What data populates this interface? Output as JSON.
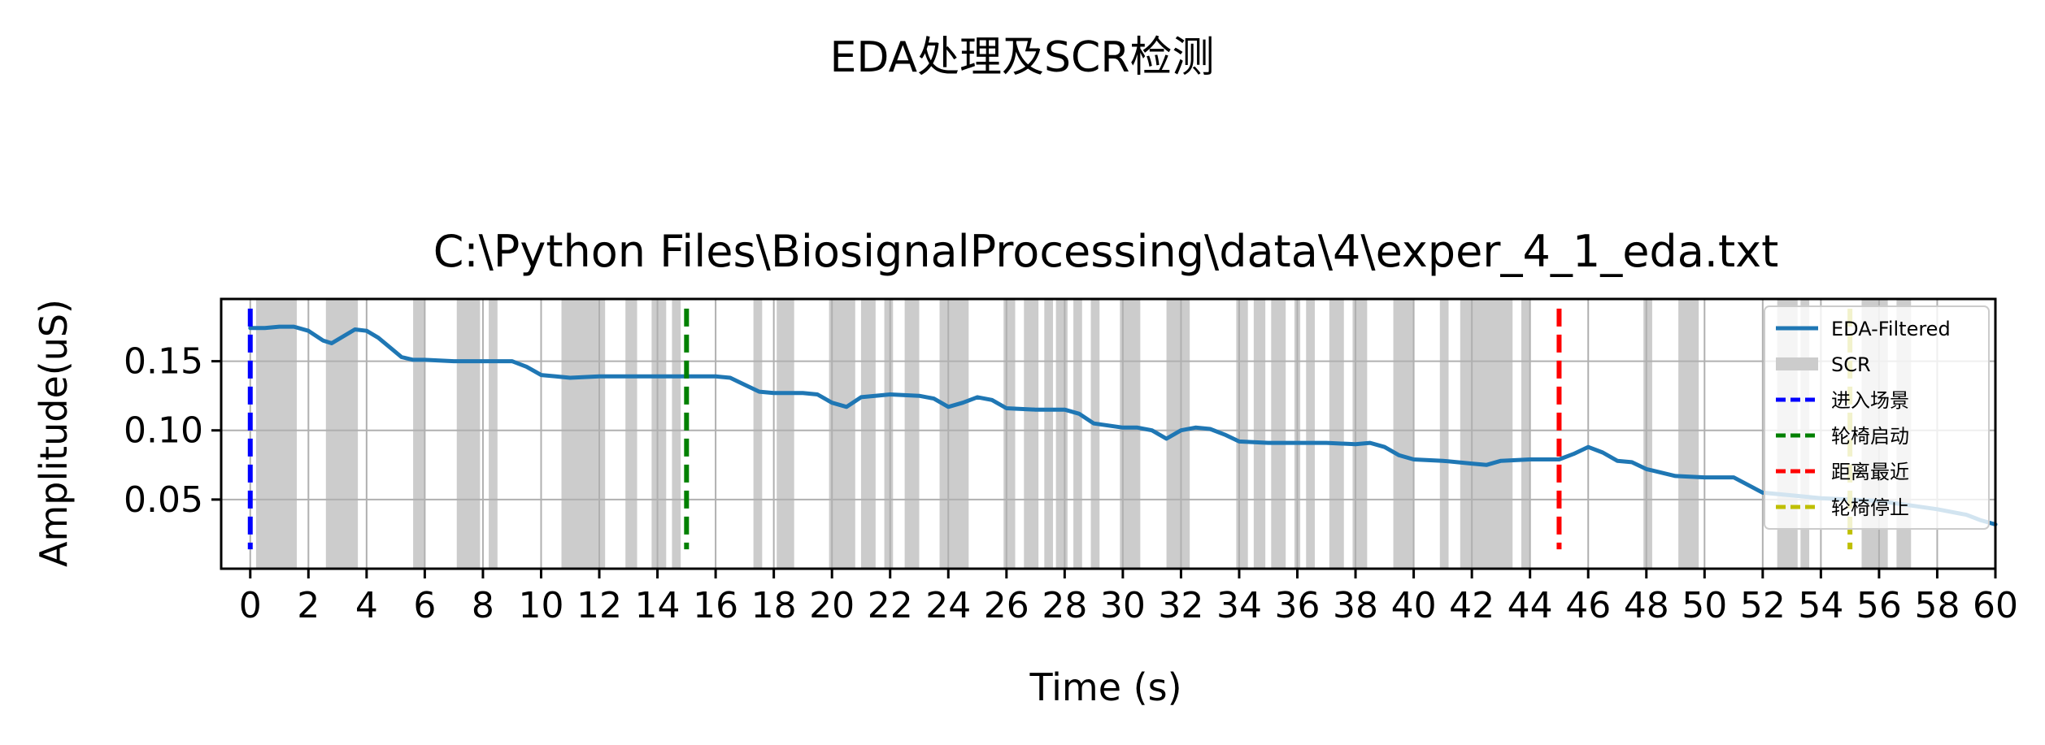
{
  "figure": {
    "suptitle": "EDA处理及SCR检测"
  },
  "chart_data": {
    "type": "line",
    "title": "C:\\Python Files\\BiosignalProcessing\\data\\4\\exper_4_1_eda.txt",
    "xlabel": "Time (s)",
    "ylabel": "Amplitude(uS)",
    "xlim": [
      -1,
      60
    ],
    "ylim": [
      0.0,
      0.195
    ],
    "xticks": [
      0,
      2,
      4,
      6,
      8,
      10,
      12,
      14,
      16,
      18,
      20,
      22,
      24,
      26,
      28,
      30,
      32,
      34,
      36,
      38,
      40,
      42,
      44,
      46,
      48,
      50,
      52,
      54,
      56,
      58,
      60
    ],
    "yticks": [
      0.05,
      0.1,
      0.15
    ],
    "ytick_labels": [
      "0.05",
      "0.10",
      "0.15"
    ],
    "grid": true,
    "legend_position": "upper right",
    "series": [
      {
        "name": "EDA-Filtered",
        "color": "#1f77b4",
        "x": [
          0,
          0.5,
          1.0,
          1.5,
          2.0,
          2.5,
          2.8,
          3.2,
          3.6,
          4.0,
          4.4,
          4.8,
          5.2,
          5.6,
          6.0,
          7.0,
          8.0,
          9.0,
          9.5,
          10.0,
          10.5,
          11.0,
          12.0,
          13.0,
          14.0,
          15.0,
          16.0,
          16.5,
          17.0,
          17.5,
          18.0,
          19.0,
          19.5,
          20.0,
          20.5,
          21.0,
          22.0,
          23.0,
          23.5,
          24.0,
          24.5,
          25.0,
          25.5,
          26.0,
          27.0,
          28.0,
          28.5,
          29.0,
          30.0,
          30.5,
          31.0,
          31.5,
          32.0,
          32.5,
          33.0,
          33.5,
          34.0,
          35.0,
          36.0,
          37.0,
          38.0,
          38.5,
          39.0,
          39.5,
          40.0,
          41.0,
          42.0,
          42.5,
          43.0,
          44.0,
          45.0,
          45.5,
          46.0,
          46.5,
          47.0,
          47.5,
          48.0,
          49.0,
          50.0,
          50.5,
          51.0,
          52.0,
          53.0,
          53.5,
          54.0,
          55.0,
          56.0,
          57.0,
          58.0,
          59.0,
          59.5,
          60.0
        ],
        "y": [
          0.174,
          0.174,
          0.175,
          0.175,
          0.172,
          0.165,
          0.163,
          0.168,
          0.173,
          0.172,
          0.167,
          0.16,
          0.153,
          0.151,
          0.151,
          0.15,
          0.15,
          0.15,
          0.146,
          0.14,
          0.139,
          0.138,
          0.139,
          0.139,
          0.139,
          0.139,
          0.139,
          0.138,
          0.133,
          0.128,
          0.127,
          0.127,
          0.126,
          0.12,
          0.117,
          0.124,
          0.126,
          0.125,
          0.123,
          0.117,
          0.12,
          0.124,
          0.122,
          0.116,
          0.115,
          0.115,
          0.112,
          0.105,
          0.102,
          0.102,
          0.1,
          0.094,
          0.1,
          0.102,
          0.101,
          0.097,
          0.092,
          0.091,
          0.091,
          0.091,
          0.09,
          0.091,
          0.088,
          0.082,
          0.079,
          0.078,
          0.076,
          0.075,
          0.078,
          0.079,
          0.079,
          0.083,
          0.088,
          0.084,
          0.078,
          0.077,
          0.072,
          0.067,
          0.066,
          0.066,
          0.066,
          0.055,
          0.053,
          0.052,
          0.051,
          0.05,
          0.049,
          0.046,
          0.043,
          0.039,
          0.035,
          0.032
        ]
      }
    ],
    "scr_label": "SCR",
    "scr_color": "#cccccc",
    "scr_regions": [
      [
        0.2,
        1.6
      ],
      [
        2.6,
        3.7
      ],
      [
        5.6,
        6.0
      ],
      [
        7.1,
        7.9
      ],
      [
        8.2,
        8.5
      ],
      [
        10.7,
        12.2
      ],
      [
        12.9,
        13.3
      ],
      [
        13.8,
        14.3
      ],
      [
        14.5,
        14.8
      ],
      [
        17.3,
        17.6
      ],
      [
        18.1,
        18.7
      ],
      [
        19.9,
        20.8
      ],
      [
        21.0,
        21.5
      ],
      [
        21.8,
        22.1
      ],
      [
        22.5,
        23.0
      ],
      [
        23.7,
        24.7
      ],
      [
        25.9,
        26.3
      ],
      [
        26.6,
        27.1
      ],
      [
        27.3,
        27.6
      ],
      [
        27.7,
        28.1
      ],
      [
        28.3,
        28.6
      ],
      [
        28.9,
        29.2
      ],
      [
        29.9,
        30.6
      ],
      [
        31.5,
        32.3
      ],
      [
        33.9,
        34.3
      ],
      [
        34.5,
        34.9
      ],
      [
        35.1,
        35.6
      ],
      [
        35.9,
        36.1
      ],
      [
        36.3,
        36.6
      ],
      [
        37.1,
        37.6
      ],
      [
        37.9,
        38.4
      ],
      [
        39.3,
        40.0
      ],
      [
        40.9,
        41.2
      ],
      [
        41.6,
        43.4
      ],
      [
        43.7,
        44.0
      ],
      [
        47.9,
        48.2
      ],
      [
        49.1,
        49.8
      ],
      [
        52.5,
        53.2
      ],
      [
        53.3,
        53.6
      ],
      [
        55.4,
        56.3
      ],
      [
        56.6,
        57.1
      ]
    ],
    "events": [
      {
        "name": "进入场景",
        "x": 0,
        "color": "#0000ff"
      },
      {
        "name": "轮椅启动",
        "x": 15,
        "color": "#008000"
      },
      {
        "name": "距离最近",
        "x": 45,
        "color": "#ff0000"
      },
      {
        "name": "轮椅停止",
        "x": 55,
        "color": "#bfbf00"
      }
    ]
  }
}
